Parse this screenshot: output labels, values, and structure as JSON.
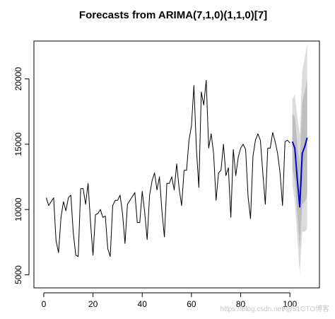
{
  "chart_data": {
    "type": "line",
    "title": "Forecasts from ARIMA(7,1,0)(1,1,0)[7]",
    "xlabel": "",
    "ylabel": "",
    "xlim": [
      -4,
      112
    ],
    "ylim": [
      4000,
      22900
    ],
    "x_ticks": [
      0,
      20,
      40,
      60,
      80,
      100
    ],
    "y_ticks": [
      5000,
      10000,
      15000,
      20000
    ],
    "grid": false,
    "series": [
      {
        "name": "",
        "color": "#000000",
        "x": [
          1,
          2,
          3,
          4,
          5,
          6,
          7,
          8,
          9,
          10,
          11,
          12,
          13,
          14,
          15,
          16,
          17,
          18,
          19,
          20,
          21,
          22,
          23,
          24,
          25,
          26,
          27,
          28,
          29,
          30,
          31,
          32,
          33,
          34,
          35,
          36,
          37,
          38,
          39,
          40,
          41,
          42,
          43,
          44,
          45,
          46,
          47,
          48,
          49,
          50,
          51,
          52,
          53,
          54,
          55,
          56,
          57,
          58,
          59,
          60,
          61,
          62,
          63,
          64,
          65,
          66,
          67,
          68,
          69,
          70,
          71,
          72,
          73,
          74,
          75,
          76,
          77,
          78,
          79,
          80,
          81,
          82,
          83,
          84,
          85,
          86,
          87,
          88,
          89,
          90,
          91,
          92,
          93,
          94,
          95,
          96,
          97,
          98,
          99,
          100
        ],
        "y": [
          10900,
          10300,
          10600,
          10900,
          7600,
          6700,
          9400,
          10600,
          9900,
          10900,
          11100,
          8200,
          6500,
          6400,
          11600,
          11600,
          10400,
          12000,
          9000,
          6500,
          9600,
          9700,
          10000,
          9400,
          9500,
          7000,
          6400,
          10300,
          10700,
          10700,
          11100,
          9700,
          7400,
          10400,
          10700,
          11000,
          11300,
          9000,
          9000,
          11400,
          9800,
          7700,
          11100,
          12200,
          12800,
          11500,
          12500,
          9900,
          7900,
          12000,
          12000,
          12500,
          11500,
          13500,
          11600,
          10300,
          13000,
          13000,
          15300,
          16400,
          19500,
          14700,
          11700,
          19000,
          18000,
          19900,
          14700,
          15800,
          14300,
          10700,
          12800,
          13000,
          15000,
          12600,
          13200,
          9400,
          14600,
          12600,
          14000,
          14700,
          15000,
          14600,
          11000,
          9300,
          14100,
          15300,
          15800,
          15300,
          12800,
          10400,
          14700,
          14700,
          15900,
          15200,
          14300,
          12800,
          10300,
          15200,
          15300,
          15100
        ]
      },
      {
        "name": "",
        "color": "#0000cc",
        "x": [
          101,
          102,
          103,
          104,
          105,
          106,
          107
        ],
        "y": [
          15200,
          14700,
          12300,
          10200,
          14300,
          14800,
          15500
        ]
      }
    ],
    "intervals": [
      {
        "level": 95,
        "color": "#dcdcdc",
        "x": [
          101,
          102,
          103,
          104,
          105,
          106,
          107
        ],
        "lower": [
          11900,
          10600,
          7800,
          5000,
          8300,
          8300,
          8500
        ],
        "upper": [
          18500,
          18800,
          17100,
          15700,
          20600,
          21600,
          22700
        ]
      },
      {
        "level": 80,
        "color": "#bebebe",
        "x": [
          101,
          102,
          103,
          104,
          105,
          106,
          107
        ],
        "lower": [
          13100,
          12300,
          9600,
          7000,
          10400,
          10600,
          11000
        ],
        "upper": [
          17300,
          17100,
          15000,
          13400,
          18200,
          19000,
          20000
        ]
      }
    ],
    "watermark": "https://blog.csdn.net/@51CTO博客"
  }
}
